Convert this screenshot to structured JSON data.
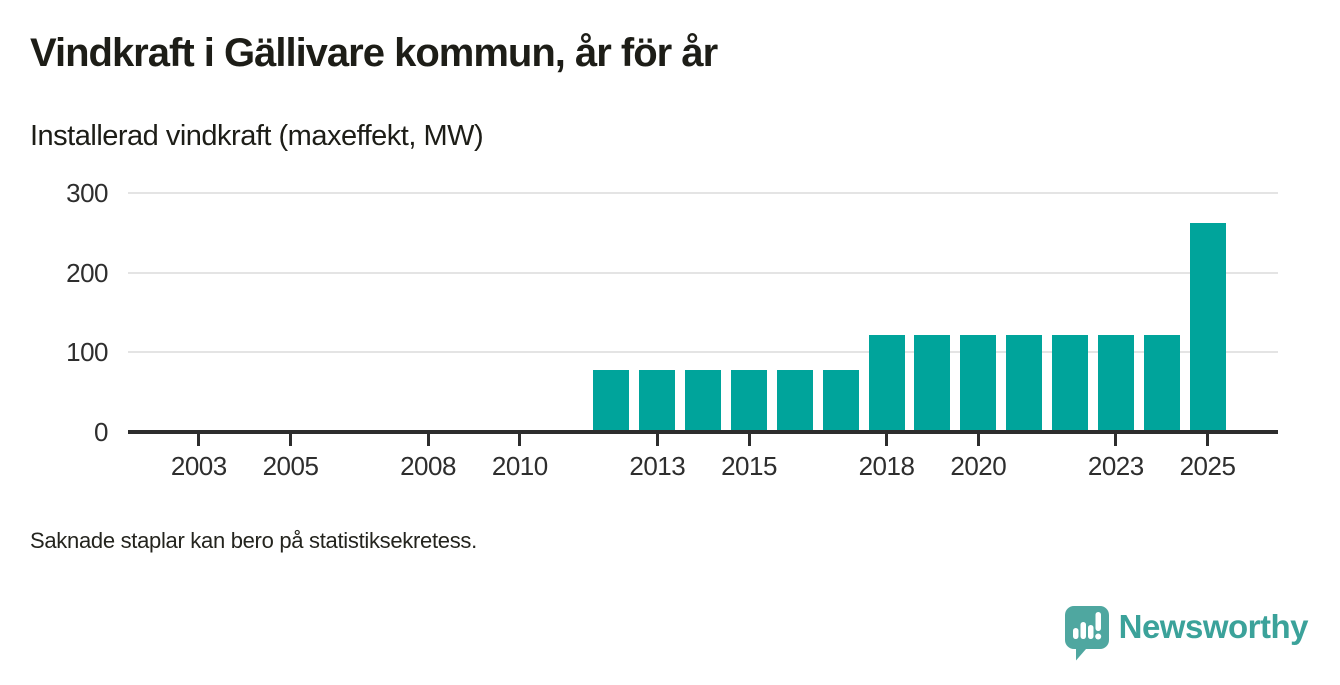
{
  "header": {
    "title": "Vindkraft i Gällivare kommun, år för år",
    "subtitle": "Installerad vindkraft (maxeffekt, MW)"
  },
  "footnote": "Saknade staplar kan bero på statistiksekretess.",
  "branding": {
    "logo_text": "Newsworthy",
    "logo_icon": "speech-bubble-bar-chart-icon",
    "logo_icon_color": "#4fa7a0",
    "logo_text_color": "#3ba29a"
  },
  "chart_data": {
    "type": "bar",
    "title": "Vindkraft i Gällivare kommun, år för år",
    "ylabel": "Installerad vindkraft (maxeffekt, MW)",
    "unit": "MW",
    "categories": [
      2002,
      2003,
      2004,
      2005,
      2006,
      2007,
      2008,
      2009,
      2010,
      2011,
      2012,
      2013,
      2014,
      2015,
      2016,
      2017,
      2018,
      2019,
      2020,
      2021,
      2022,
      2023,
      2024,
      2025
    ],
    "values": [
      null,
      null,
      null,
      null,
      null,
      null,
      null,
      null,
      null,
      null,
      78,
      78,
      78,
      78,
      78,
      78,
      122,
      122,
      122,
      122,
      122,
      122,
      122,
      262
    ],
    "x_ticks": [
      2003,
      2005,
      2008,
      2010,
      2013,
      2015,
      2018,
      2020,
      2023,
      2025
    ],
    "y_ticks": [
      0,
      100,
      200,
      300
    ],
    "ylim": [
      0,
      300
    ],
    "xlim": [
      2001.4,
      2026.6
    ],
    "grid": true,
    "legend": "none",
    "bar_color": "#00a49b",
    "grid_color": "#e4e4e4",
    "axis_color": "#2d2d2d"
  }
}
